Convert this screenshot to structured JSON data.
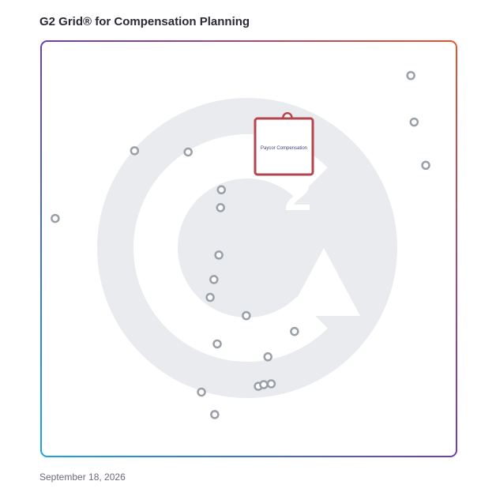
{
  "title": "G2 Grid® for Compensation Planning",
  "date": "September 18, 2026",
  "highlight_label": "Paycor Compensation",
  "colors": {
    "point_stroke": "#9aa0a8",
    "highlight": "#b5454c",
    "watermark": "#e9ebee",
    "border_gradient": [
      "#1aa3e0",
      "#6a3fb5",
      "#e8532a"
    ]
  },
  "chart_data": {
    "type": "scatter",
    "title": "G2 Grid® for Compensation Planning",
    "xlabel": "",
    "ylabel": "",
    "xlim": [
      0,
      100
    ],
    "ylim": [
      0,
      100
    ],
    "quadrant_split": {
      "x": 50,
      "y": 50
    },
    "grid": true,
    "points": [
      {
        "x": 3.4,
        "y": 57.3
      },
      {
        "x": 22.5,
        "y": 73.6
      },
      {
        "x": 35.4,
        "y": 73.3
      },
      {
        "x": 43.4,
        "y": 64.2
      },
      {
        "x": 43.2,
        "y": 59.9
      },
      {
        "x": 42.8,
        "y": 48.5
      },
      {
        "x": 41.6,
        "y": 42.6
      },
      {
        "x": 40.7,
        "y": 38.3
      },
      {
        "x": 49.4,
        "y": 33.9
      },
      {
        "x": 42.4,
        "y": 27.1
      },
      {
        "x": 61.0,
        "y": 30.1
      },
      {
        "x": 54.6,
        "y": 24.0
      },
      {
        "x": 52.3,
        "y": 16.9
      },
      {
        "x": 53.6,
        "y": 17.3
      },
      {
        "x": 55.4,
        "y": 17.5
      },
      {
        "x": 38.6,
        "y": 15.5
      },
      {
        "x": 41.8,
        "y": 10.1
      },
      {
        "x": 89.0,
        "y": 91.7
      },
      {
        "x": 89.8,
        "y": 80.5
      },
      {
        "x": 92.6,
        "y": 70.1
      },
      {
        "x": 59.3,
        "y": 81.6,
        "highlight": true
      }
    ]
  }
}
